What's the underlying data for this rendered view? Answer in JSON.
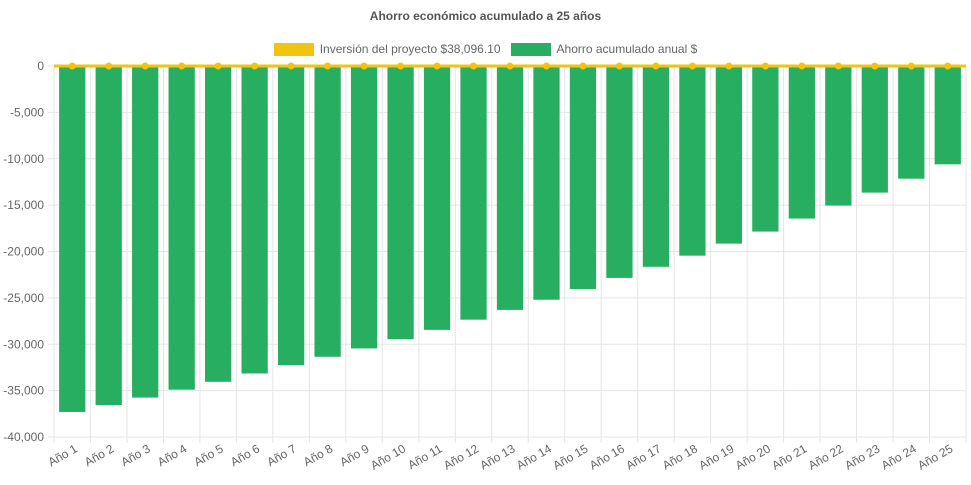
{
  "chart_data": {
    "type": "bar",
    "title": "Ahorro económico acumulado a 25 años",
    "categories": [
      "Año 1",
      "Año 2",
      "Año 3",
      "Año 4",
      "Año 5",
      "Año 6",
      "Año 7",
      "Año 8",
      "Año 9",
      "Año 10",
      "Año 11",
      "Año 12",
      "Año 13",
      "Año 14",
      "Año 15",
      "Año 16",
      "Año 17",
      "Año 18",
      "Año 19",
      "Año 20",
      "Año 21",
      "Año 22",
      "Año 23",
      "Año 24",
      "Año 25"
    ],
    "series": [
      {
        "name": "Inversión del proyecto $38,096.10",
        "type": "line",
        "color": "#f1c40f",
        "values": [
          0,
          0,
          0,
          0,
          0,
          0,
          0,
          0,
          0,
          0,
          0,
          0,
          0,
          0,
          0,
          0,
          0,
          0,
          0,
          0,
          0,
          0,
          0,
          0,
          0
        ]
      },
      {
        "name": "Ahorro acumulado anual $",
        "type": "bar",
        "color": "#27ae60",
        "values": [
          -37300,
          -36550,
          -35750,
          -34900,
          -34050,
          -33150,
          -32250,
          -31350,
          -30450,
          -29450,
          -28450,
          -27350,
          -26300,
          -25200,
          -24050,
          -22850,
          -21650,
          -20450,
          -19150,
          -17850,
          -16450,
          -15050,
          -13650,
          -12150,
          -10600
        ]
      }
    ],
    "yticks": [
      "0",
      "-5,000",
      "-10,000",
      "-15,000",
      "-20,000",
      "-25,000",
      "-30,000",
      "-35,000",
      "-40,000"
    ],
    "ytick_values": [
      0,
      -5000,
      -10000,
      -15000,
      -20000,
      -25000,
      -30000,
      -35000,
      -40000
    ],
    "ylim": [
      -40000,
      0
    ],
    "grid": true,
    "legend_position": "top"
  }
}
